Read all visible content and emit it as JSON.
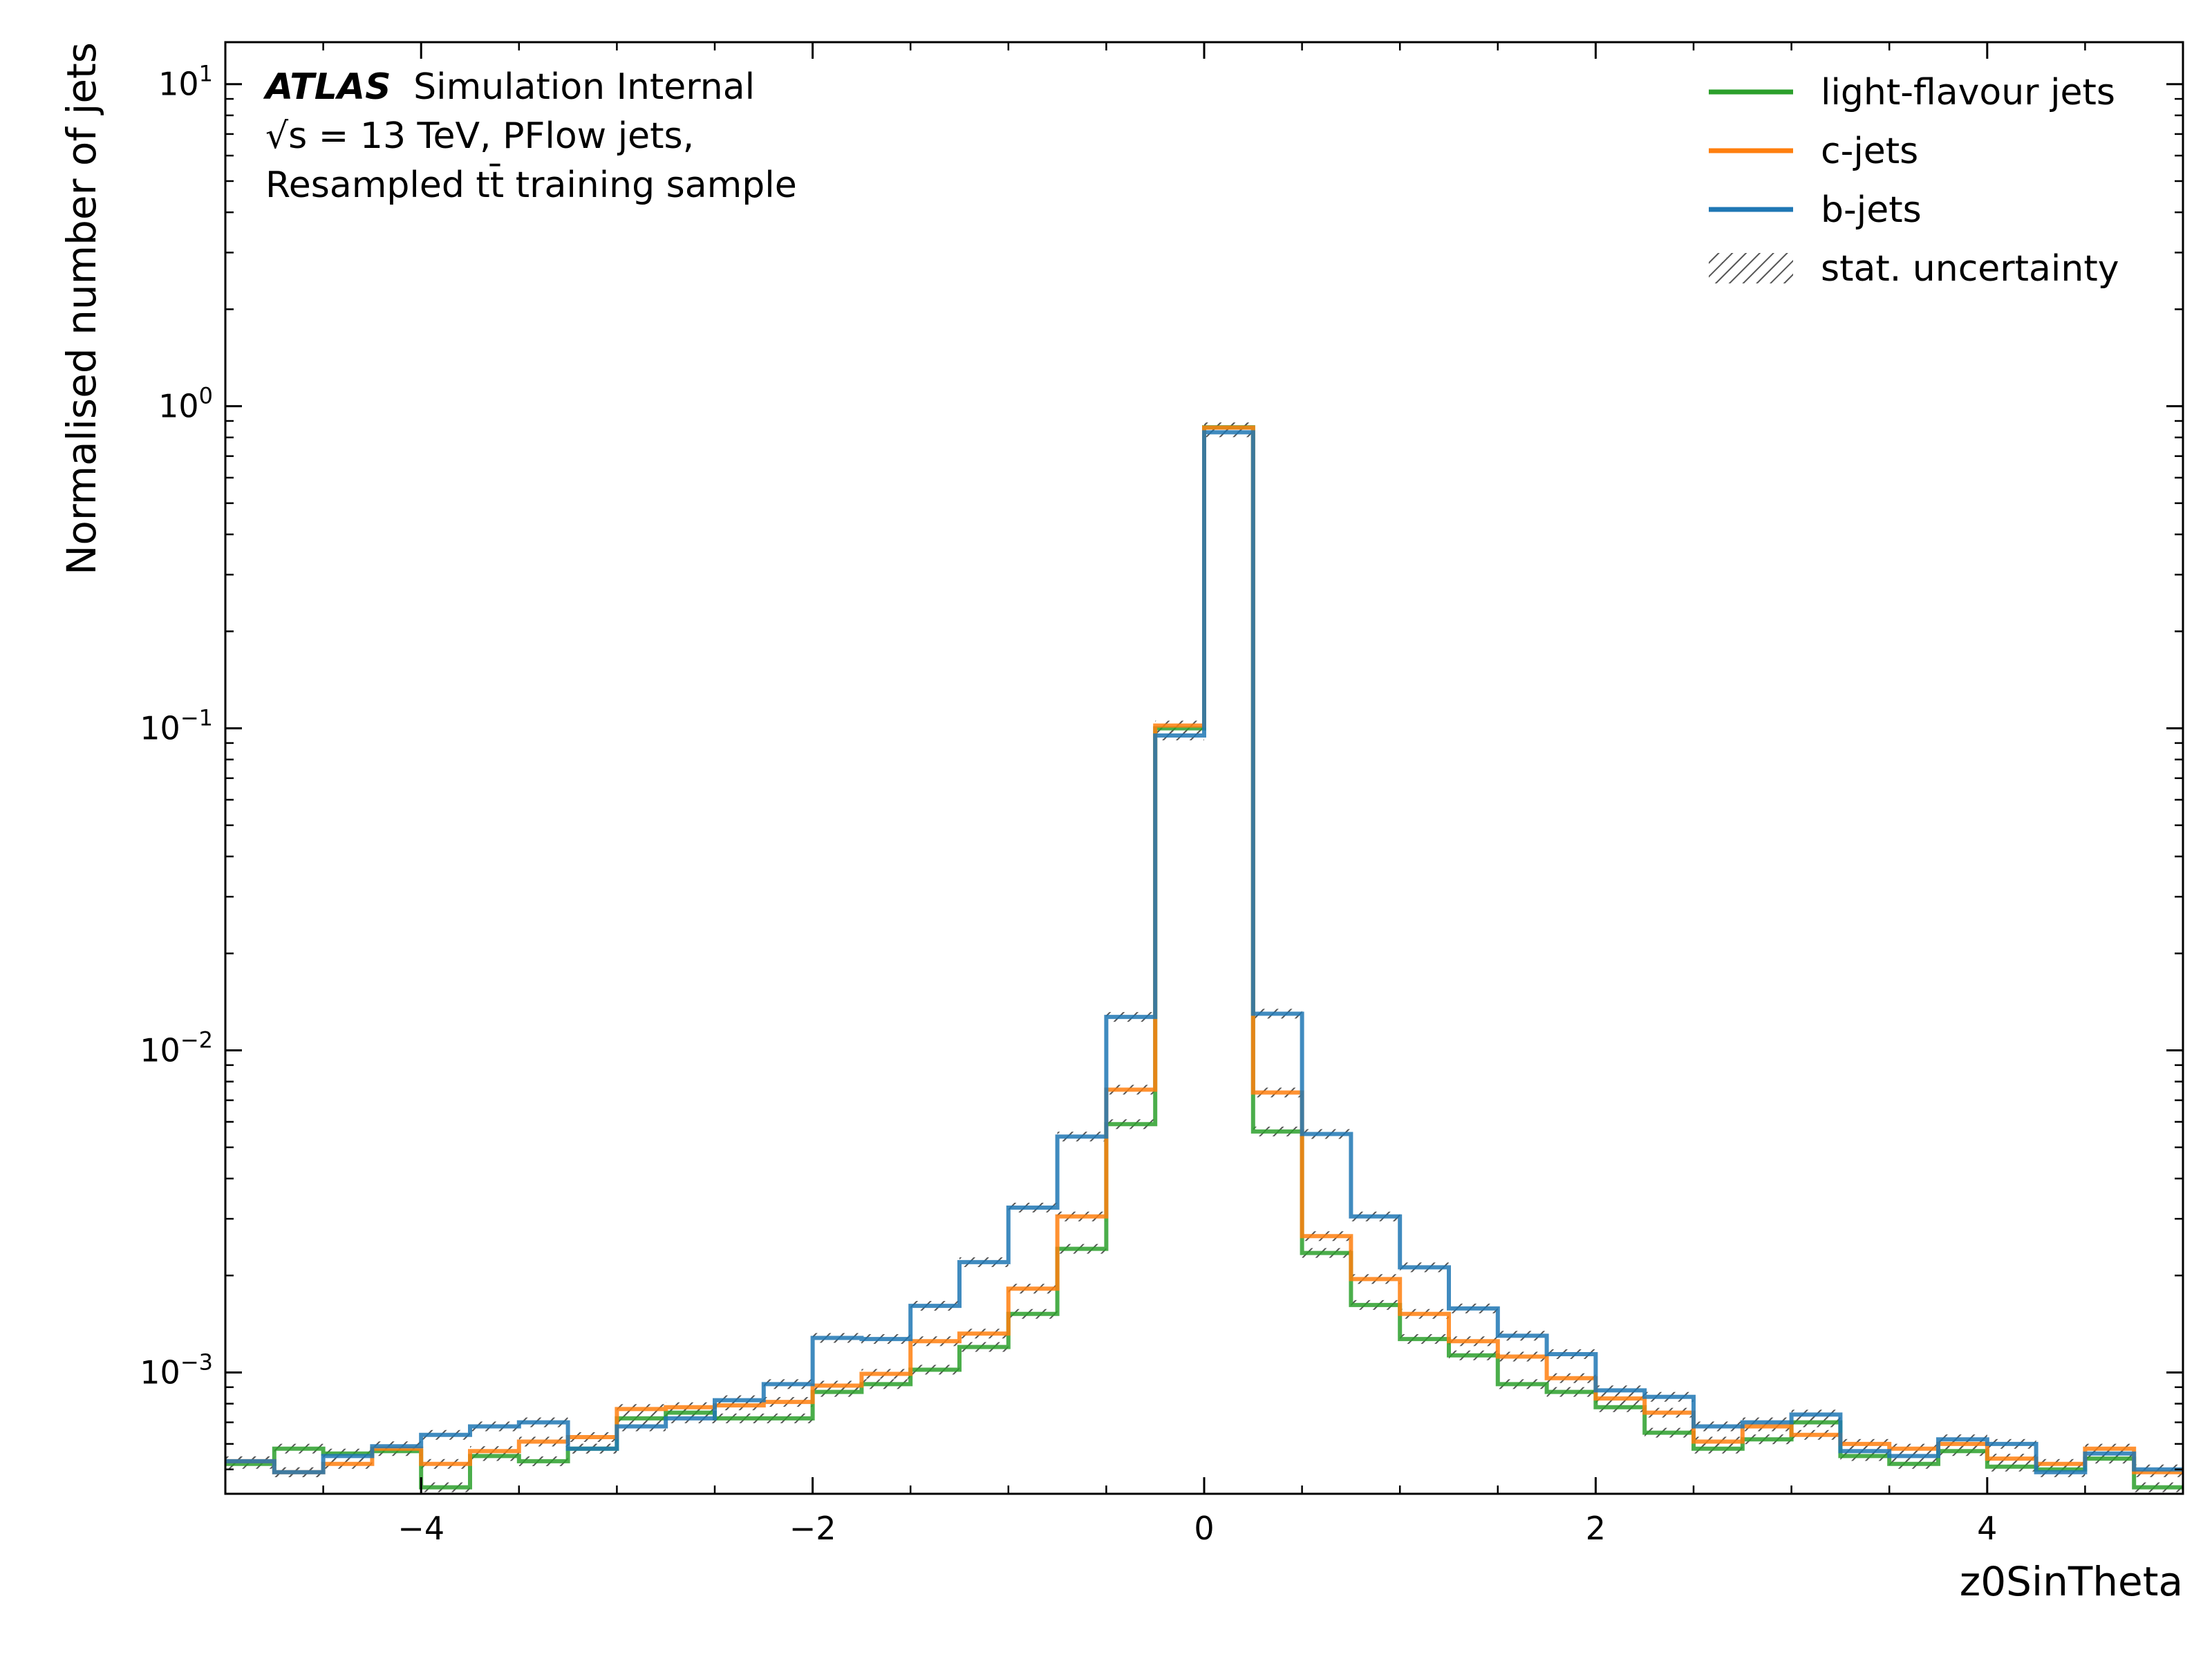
{
  "chart_data": {
    "type": "line",
    "title": "",
    "xlabel": "z0SinTheta",
    "ylabel": "Normalised number of jets",
    "xlim": [
      -5,
      5
    ],
    "ylim": [
      0.00042,
      13.5
    ],
    "yscale": "log",
    "grid": false,
    "legend_position": "top-right",
    "atlas_label": {
      "brand": "ATLAS",
      "tag": "Simulation Internal",
      "line2": "√s = 13 TeV, PFlow jets,",
      "line3": "Resampled tt̄ training sample"
    },
    "x_ticks": [
      {
        "value": -4,
        "label": "−4"
      },
      {
        "value": -2,
        "label": "−2"
      },
      {
        "value": 0,
        "label": "0"
      },
      {
        "value": 2,
        "label": "2"
      },
      {
        "value": 4,
        "label": "4"
      }
    ],
    "y_ticks": [
      {
        "value": 0.001,
        "base": "10",
        "exp": "−3"
      },
      {
        "value": 0.01,
        "base": "10",
        "exp": "−2"
      },
      {
        "value": 0.1,
        "base": "10",
        "exp": "−1"
      },
      {
        "value": 1,
        "base": "10",
        "exp": "0"
      },
      {
        "value": 10,
        "base": "10",
        "exp": "1"
      }
    ],
    "bin_edges": [
      -5.0,
      -4.75,
      -4.5,
      -4.25,
      -4.0,
      -3.75,
      -3.5,
      -3.25,
      -3.0,
      -2.75,
      -2.5,
      -2.25,
      -2.0,
      -1.75,
      -1.5,
      -1.25,
      -1.0,
      -0.75,
      -0.5,
      -0.25,
      0.0,
      0.25,
      0.5,
      0.75,
      1.0,
      1.25,
      1.5,
      1.75,
      2.0,
      2.25,
      2.5,
      2.75,
      3.0,
      3.25,
      3.5,
      3.75,
      4.0,
      4.25,
      4.5,
      4.75,
      5.0
    ],
    "series": [
      {
        "name": "light-flavour jets",
        "color": "#2ca02c",
        "values": [
          0.00052,
          0.00058,
          0.00056,
          0.00057,
          0.00044,
          0.00055,
          0.00053,
          0.00058,
          0.00072,
          0.00075,
          0.00072,
          0.00072,
          0.00087,
          0.00092,
          0.00102,
          0.0012,
          0.00152,
          0.00242,
          0.0059,
          0.1,
          0.86,
          0.0056,
          0.00235,
          0.00162,
          0.00127,
          0.00113,
          0.00092,
          0.00087,
          0.00078,
          0.00065,
          0.00058,
          0.00062,
          0.0007,
          0.00055,
          0.00052,
          0.00057,
          0.00051,
          0.0005,
          0.00054,
          0.00044
        ]
      },
      {
        "name": "c-jets",
        "color": "#ff7f0e",
        "values": [
          0.00053,
          0.00049,
          0.00052,
          0.00058,
          0.00052,
          0.00057,
          0.00061,
          0.00063,
          0.00077,
          0.00078,
          0.00079,
          0.00081,
          0.00091,
          0.00099,
          0.00125,
          0.00132,
          0.00182,
          0.00305,
          0.00755,
          0.102,
          0.858,
          0.0074,
          0.00265,
          0.00195,
          0.00152,
          0.00125,
          0.00112,
          0.00096,
          0.00083,
          0.00075,
          0.00061,
          0.00068,
          0.00064,
          0.0006,
          0.00058,
          0.0006,
          0.00054,
          0.00052,
          0.00058,
          0.00049
        ]
      },
      {
        "name": "b-jets",
        "color": "#1f77b4",
        "values": [
          0.00053,
          0.00049,
          0.00055,
          0.00059,
          0.00064,
          0.00068,
          0.0007,
          0.00058,
          0.00068,
          0.00072,
          0.00082,
          0.00092,
          0.00128,
          0.00127,
          0.00161,
          0.0022,
          0.00325,
          0.0054,
          0.0127,
          0.095,
          0.83,
          0.013,
          0.0055,
          0.00305,
          0.00212,
          0.00158,
          0.0013,
          0.00114,
          0.00088,
          0.00084,
          0.00068,
          0.0007,
          0.00074,
          0.00057,
          0.00055,
          0.00062,
          0.0006,
          0.00049,
          0.00056,
          0.0005
        ]
      }
    ],
    "uncertainty_label": "stat. uncertainty",
    "uncertainty_color": "#555555"
  }
}
